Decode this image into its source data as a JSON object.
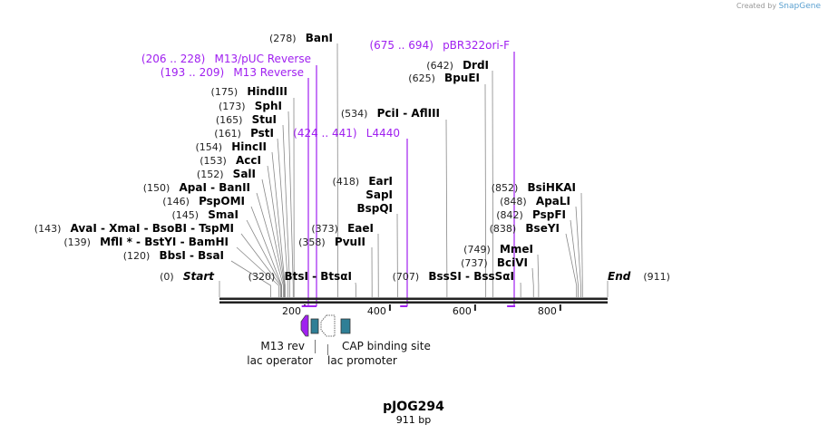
{
  "logo": {
    "created_by": "Created by",
    "brand": "SnapGene"
  },
  "map": {
    "name": "pJOG294",
    "length_label": "911 bp",
    "length": 911
  },
  "axis_ticks": [
    200,
    400,
    600,
    800
  ],
  "colors": {
    "primer": "#a020f0",
    "feature_teal": "#2f7f96",
    "axis": "#222222"
  },
  "sites": [
    {
      "pos": 278,
      "pos_label": "(278)",
      "name": "BanI"
    },
    {
      "pos": 175,
      "pos_label": "(175)",
      "name": "HindIII"
    },
    {
      "pos": 173,
      "pos_label": "(173)",
      "name": "SphI"
    },
    {
      "pos": 165,
      "pos_label": "(165)",
      "name": "StuI"
    },
    {
      "pos": 161,
      "pos_label": "(161)",
      "name": "PstI"
    },
    {
      "pos": 154,
      "pos_label": "(154)",
      "name": "HincII"
    },
    {
      "pos": 153,
      "pos_label": "(153)",
      "name": "AccI"
    },
    {
      "pos": 152,
      "pos_label": "(152)",
      "name": "SalI"
    },
    {
      "pos": 150,
      "pos_label": "(150)",
      "name": "ApaI  -  BanII"
    },
    {
      "pos": 146,
      "pos_label": "(146)",
      "name": "PspOMI"
    },
    {
      "pos": 145,
      "pos_label": "(145)",
      "name": "SmaI"
    },
    {
      "pos": 143,
      "pos_label": "(143)",
      "name": "AvaI  - XmaI  - BsoBI  - TspMI"
    },
    {
      "pos": 139,
      "pos_label": "(139)",
      "name": "MflI * - BstYI  - BamHI"
    },
    {
      "pos": 120,
      "pos_label": "(120)",
      "name": "BbsI  - BsaI"
    },
    {
      "pos": 0,
      "pos_label": "(0)",
      "name": "Start"
    },
    {
      "pos": 320,
      "pos_label": "(320)",
      "name": "BtsI  - BtsαI"
    },
    {
      "pos": 358,
      "pos_label": "(358)",
      "name": "PvuII"
    },
    {
      "pos": 373,
      "pos_label": "(373)",
      "name": "EaeI"
    },
    {
      "pos": 418,
      "pos_label": "(418)",
      "name": "EarI"
    },
    {
      "pos": 418,
      "pos_label": "",
      "name": "SapI"
    },
    {
      "pos": 418,
      "pos_label": "",
      "name": "BspQI"
    },
    {
      "pos": 534,
      "pos_label": "(534)",
      "name": "PciI  - AflIII"
    },
    {
      "pos": 625,
      "pos_label": "(625)",
      "name": "BpuEI"
    },
    {
      "pos": 642,
      "pos_label": "(642)",
      "name": "DrdI"
    },
    {
      "pos": 707,
      "pos_label": "(707)",
      "name": "BssSI  - BssSαI"
    },
    {
      "pos": 737,
      "pos_label": "(737)",
      "name": "BciVI"
    },
    {
      "pos": 749,
      "pos_label": "(749)",
      "name": "MmeI"
    },
    {
      "pos": 838,
      "pos_label": "(838)",
      "name": "BseYI"
    },
    {
      "pos": 842,
      "pos_label": "(842)",
      "name": "PspFI"
    },
    {
      "pos": 848,
      "pos_label": "(848)",
      "name": "ApaLI"
    },
    {
      "pos": 852,
      "pos_label": "(852)",
      "name": "BsiHKAI"
    },
    {
      "pos": 911,
      "pos_label": "(911)",
      "name": "End"
    }
  ],
  "primers": [
    {
      "start": 206,
      "end": 228,
      "range_label": "(206 .. 228)",
      "name": "M13/pUC Reverse"
    },
    {
      "start": 193,
      "end": 209,
      "range_label": "(193 .. 209)",
      "name": "M13 Reverse"
    },
    {
      "start": 424,
      "end": 441,
      "range_label": "(424 .. 441)",
      "name": "L4440"
    },
    {
      "start": 675,
      "end": 694,
      "range_label": "(675 .. 694)",
      "name": "pBR322ori-F"
    }
  ],
  "features": [
    {
      "name": "M13 rev"
    },
    {
      "name": "lac operator"
    },
    {
      "name": "lac promoter"
    },
    {
      "name": "CAP binding site"
    }
  ]
}
